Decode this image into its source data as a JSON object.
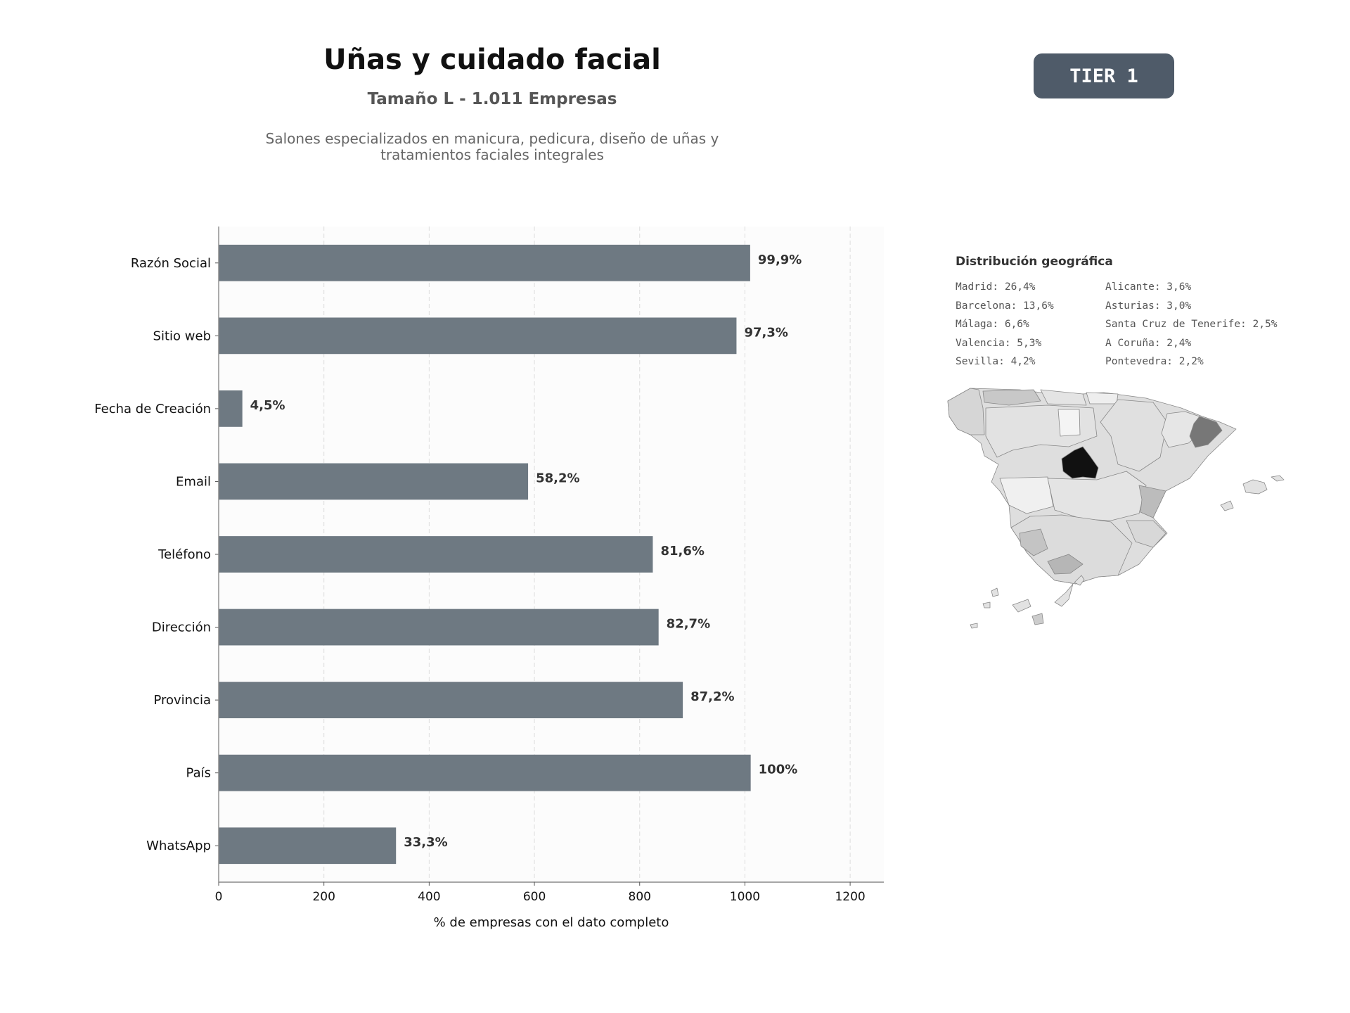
{
  "header": {
    "title": "Uñas y cuidado facial",
    "subtitle": "Tamaño L - 1.011 Empresas",
    "description": "Salones especializados en manicura, pedicura, diseño de uñas y tratamientos faciales integrales",
    "tier_badge": "TIER 1"
  },
  "colors": {
    "bar": "#6e7982",
    "badge": "#4f5b69",
    "plot_background": "#fcfcfc"
  },
  "chart_data": {
    "type": "bar",
    "orientation": "horizontal",
    "categories": [
      "Razón Social",
      "Sitio web",
      "Fecha de Creación",
      "Email",
      "Teléfono",
      "Dirección",
      "Provincia",
      "País",
      "WhatsApp"
    ],
    "values": [
      1010,
      984,
      45,
      588,
      825,
      836,
      882,
      1011,
      337
    ],
    "value_labels": [
      "99,9%",
      "97,3%",
      "4,5%",
      "58,2%",
      "81,6%",
      "82,7%",
      "87,2%",
      "100%",
      "33,3%"
    ],
    "xlabel": "% de empresas con el dato completo",
    "xticks": [
      0,
      200,
      400,
      600,
      800,
      1000,
      1200
    ],
    "xlim": [
      0,
      1264
    ],
    "grid": "x-dashed",
    "legend": "none"
  },
  "geo": {
    "title": "Distribución geográfica",
    "column_1": [
      "Madrid: 26,4%",
      "Barcelona: 13,6%",
      "Málaga: 6,6%",
      "Valencia: 5,3%",
      "Sevilla: 4,2%"
    ],
    "column_2": [
      "Alicante: 3,6%",
      "Asturias: 3,0%",
      "Santa Cruz de Tenerife: 2,5%",
      "A Coruña: 2,4%",
      "Pontevedra: 2,2%"
    ]
  }
}
